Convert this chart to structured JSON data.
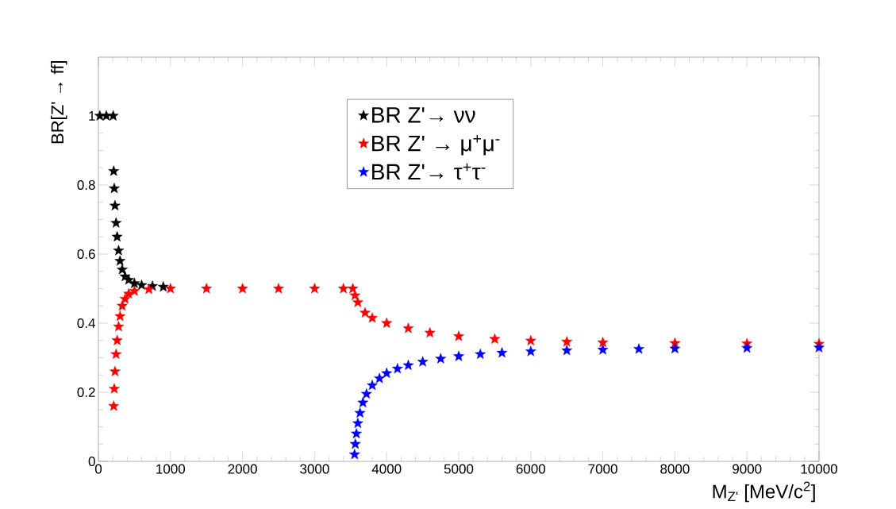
{
  "chart_data": {
    "type": "scatter",
    "xlabel": "M$_{Z'}$ [MeV/c$^{2}$]",
    "ylabel": "BR[Z' → ff]",
    "marker": "star",
    "legend": "top",
    "xlim": [
      0,
      10000
    ],
    "ylim": [
      0,
      1.17
    ],
    "xticks": [
      0,
      1000,
      2000,
      3000,
      4000,
      5000,
      6000,
      7000,
      8000,
      9000,
      10000
    ],
    "yticks": [
      0,
      0.2,
      0.4,
      0.6,
      0.8,
      1
    ],
    "series": [
      {
        "name": "BR Z'→ νν",
        "color": "#000000",
        "x": [
          20,
          110,
          205,
          212,
          220,
          230,
          245,
          260,
          280,
          300,
          330,
          370,
          420,
          500,
          600,
          750,
          900
        ],
        "values": [
          1,
          1,
          1,
          0.84,
          0.79,
          0.74,
          0.69,
          0.65,
          0.61,
          0.58,
          0.555,
          0.535,
          0.525,
          0.515,
          0.51,
          0.507,
          0.505
        ]
      },
      {
        "name": "BR Z' → μ$^{+}$μ$^{-}$",
        "color": "#ff0000",
        "x": [
          212,
          220,
          230,
          245,
          260,
          280,
          300,
          330,
          370,
          420,
          500,
          700,
          1000,
          1500,
          2000,
          2500,
          3000,
          3400,
          3530,
          3560,
          3600,
          3700,
          3800,
          4000,
          4300,
          4600,
          5000,
          5500,
          6000,
          6500,
          7000,
          8000,
          9000,
          10000
        ],
        "values": [
          0.16,
          0.21,
          0.26,
          0.31,
          0.35,
          0.39,
          0.42,
          0.45,
          0.47,
          0.485,
          0.493,
          0.498,
          0.5,
          0.5,
          0.5,
          0.5,
          0.5,
          0.5,
          0.5,
          0.48,
          0.46,
          0.43,
          0.415,
          0.4,
          0.385,
          0.372,
          0.362,
          0.354,
          0.349,
          0.346,
          0.344,
          0.342,
          0.341,
          0.34
        ]
      },
      {
        "name": "BR Z'→ τ$^{+}$τ$^{-}$",
        "color": "#0000ff",
        "x": [
          3555,
          3565,
          3580,
          3600,
          3630,
          3670,
          3720,
          3800,
          3900,
          4000,
          4150,
          4300,
          4500,
          4750,
          5000,
          5300,
          5600,
          6000,
          6500,
          7000,
          7500,
          8000,
          9000,
          10000
        ],
        "values": [
          0.02,
          0.05,
          0.08,
          0.11,
          0.14,
          0.17,
          0.195,
          0.22,
          0.24,
          0.255,
          0.268,
          0.278,
          0.288,
          0.297,
          0.304,
          0.31,
          0.314,
          0.318,
          0.321,
          0.323,
          0.325,
          0.326,
          0.328,
          0.329
        ]
      }
    ]
  }
}
